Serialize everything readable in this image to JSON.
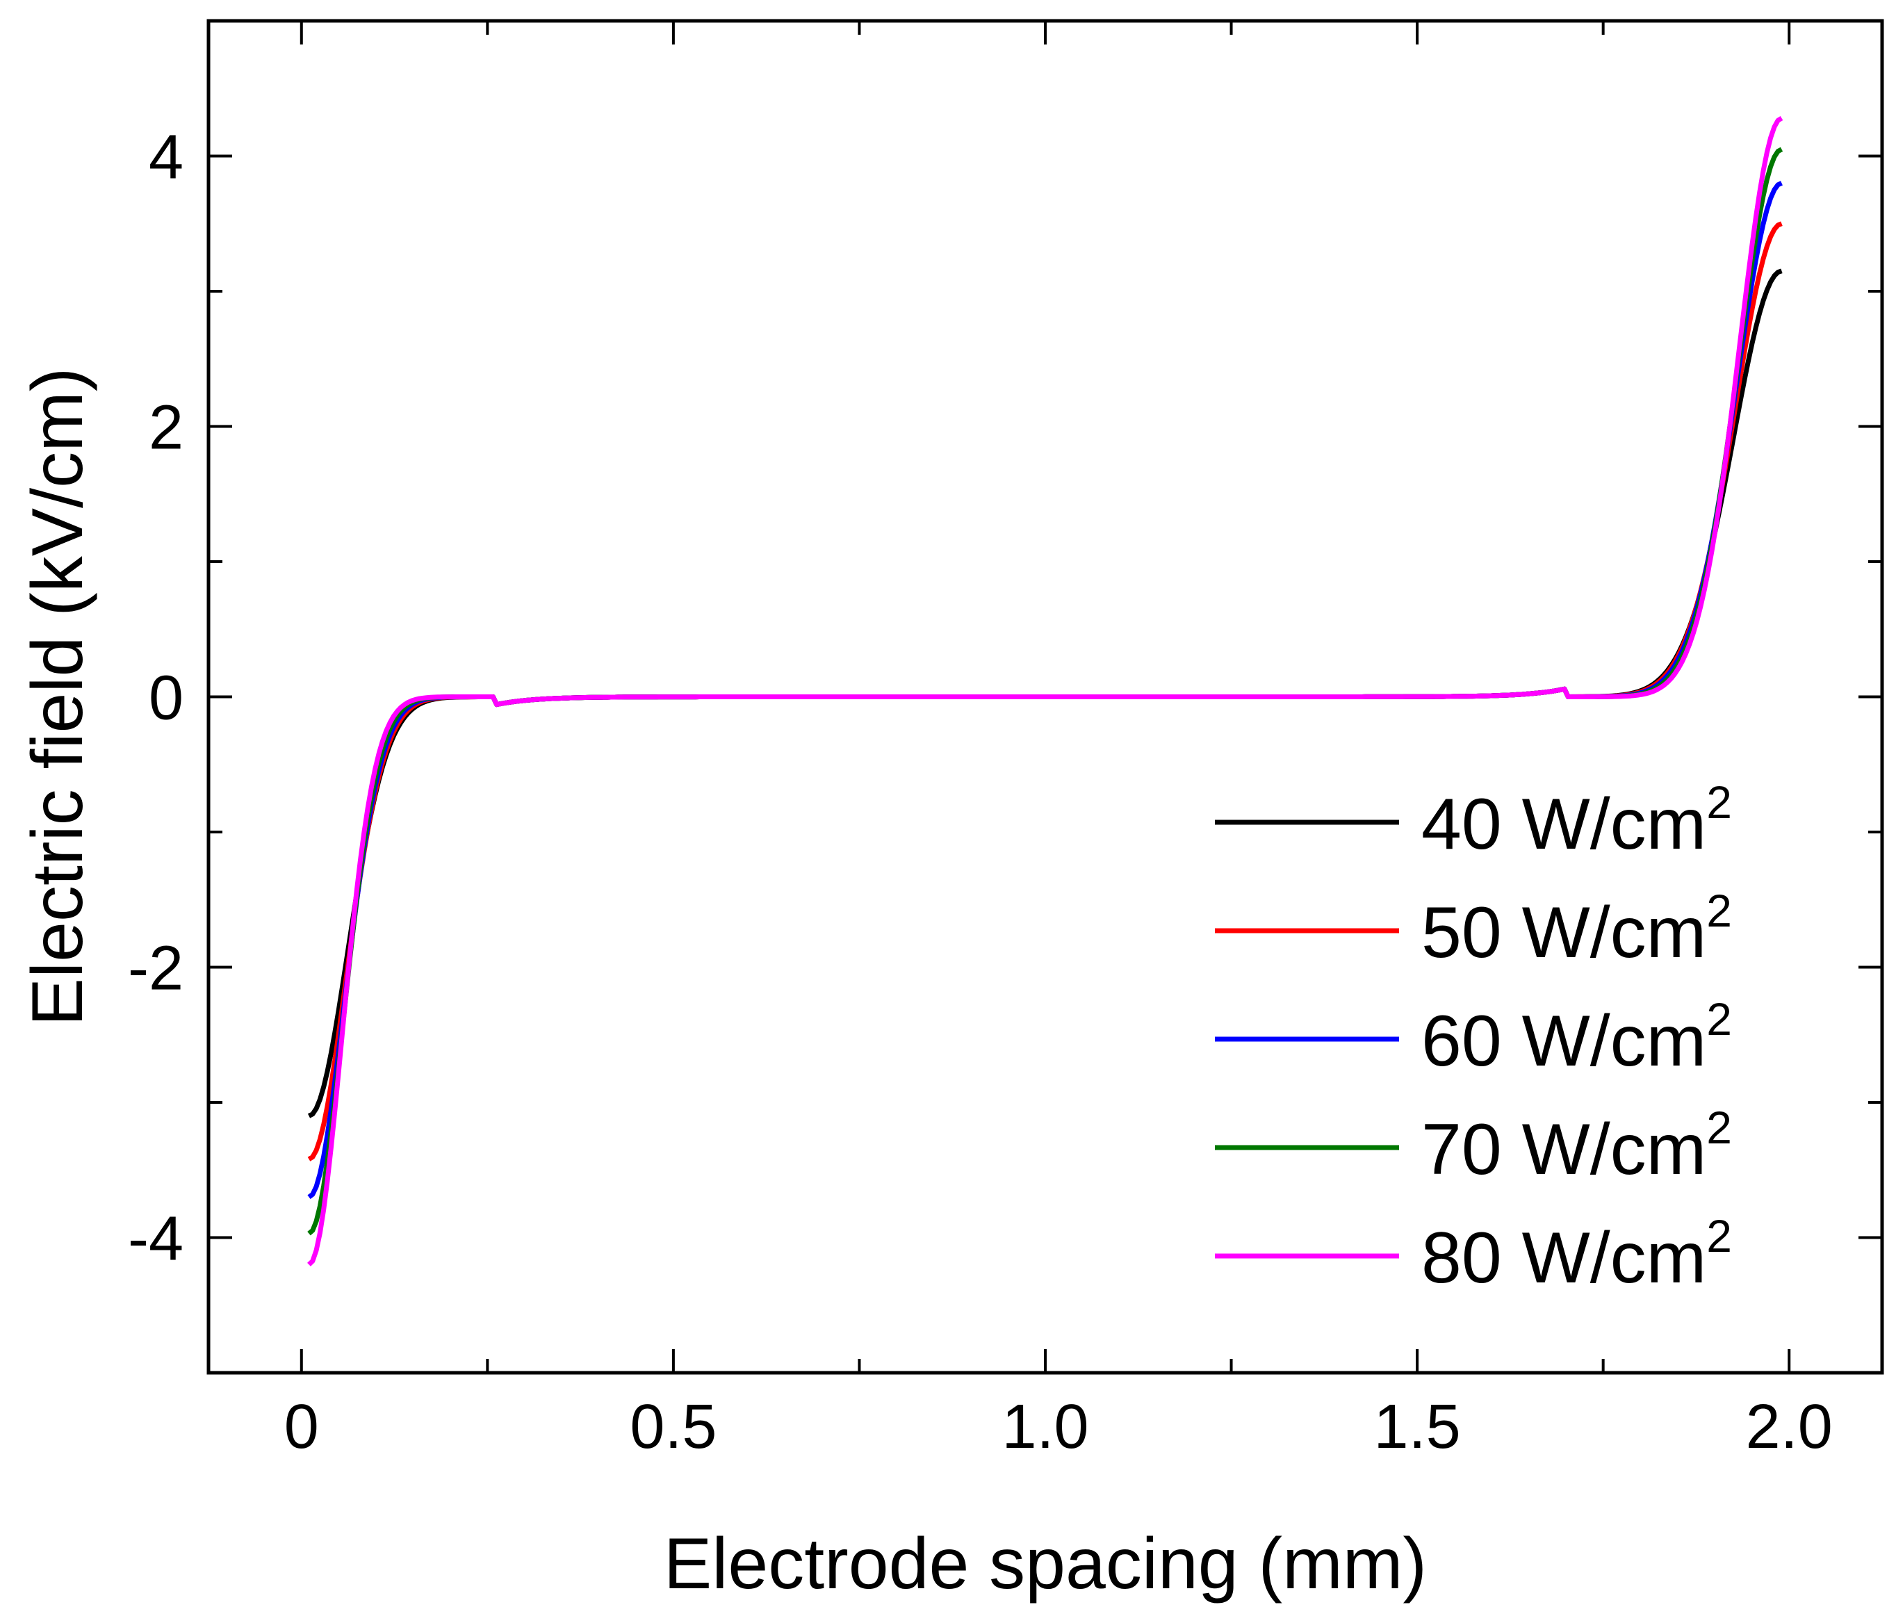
{
  "chart_data": {
    "type": "line",
    "title": "",
    "xlabel": "Electrode spacing (mm)",
    "ylabel": "Electric field (kV/cm)",
    "xlim": [
      -0.125,
      2.125
    ],
    "ylim": [
      -5,
      5
    ],
    "x_ticks": [
      0,
      0.5,
      1.0,
      1.5,
      2.0
    ],
    "x_tick_labels": [
      "0",
      "0.5",
      "1.0",
      "1.5",
      "2.0"
    ],
    "x_minor_ticks": [
      0.25,
      0.75,
      1.25,
      1.75
    ],
    "y_ticks": [
      -4,
      -2,
      0,
      2,
      4
    ],
    "y_tick_labels": [
      "-4",
      "-2",
      "0",
      "2",
      "4"
    ],
    "y_minor_ticks": [
      -3,
      -1,
      1,
      3
    ],
    "legend_position": "lower-right",
    "legend_unit_base": "W/cm",
    "legend_unit_sup": "2",
    "series": [
      {
        "name": "40",
        "color": "#000000",
        "left": -3.1,
        "right": 3.15
      },
      {
        "name": "50",
        "color": "#ff0000",
        "left": -3.42,
        "right": 3.5
      },
      {
        "name": "60",
        "color": "#0000ff",
        "left": -3.7,
        "right": 3.8
      },
      {
        "name": "70",
        "color": "#007700",
        "left": -3.97,
        "right": 4.05
      },
      {
        "name": "80",
        "color": "#ff00ff",
        "left": -4.2,
        "right": 4.28
      }
    ]
  }
}
